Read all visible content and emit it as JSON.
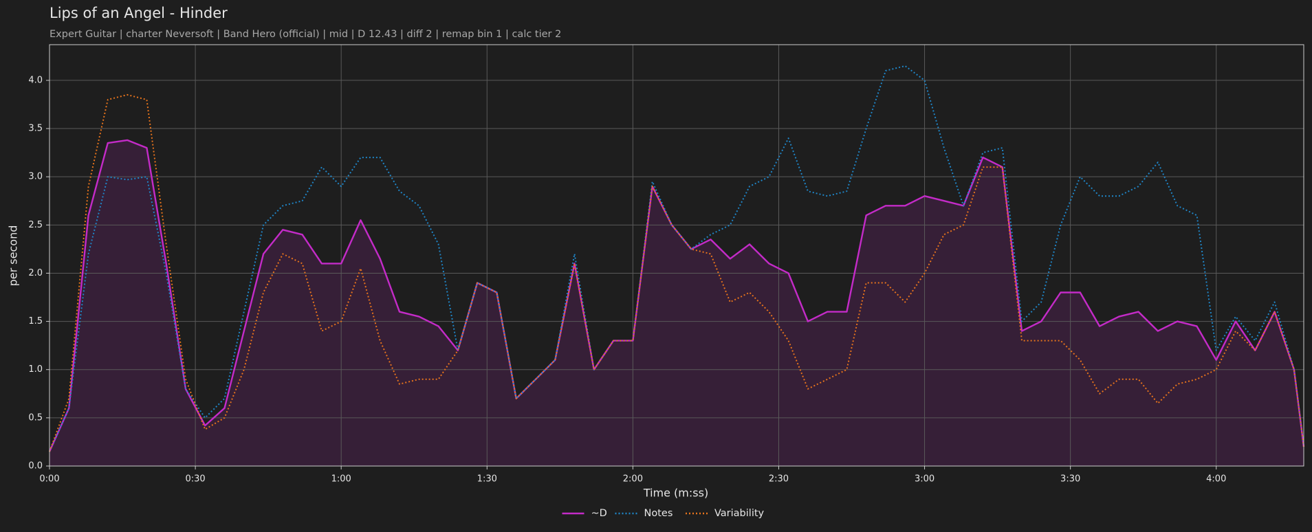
{
  "chart_data": {
    "type": "line",
    "title": "Lips of an Angel - Hinder",
    "subtitle": "Expert Guitar  |  charter Neversoft  |  Band Hero (official)  |  mid  |  D 12.43  |  diff 2  |  remap bin 1  |  calc tier 2",
    "x_label": "Time (m:ss)",
    "y_label": "per second",
    "x": [
      0,
      4,
      8,
      12,
      16,
      20,
      24,
      28,
      32,
      36,
      40,
      44,
      48,
      52,
      56,
      60,
      64,
      68,
      72,
      76,
      80,
      84,
      88,
      92,
      96,
      100,
      104,
      108,
      112,
      116,
      120,
      124,
      128,
      132,
      136,
      140,
      144,
      148,
      152,
      156,
      160,
      164,
      168,
      172,
      176,
      180,
      184,
      188,
      192,
      196,
      200,
      204,
      208,
      212,
      216,
      220,
      224,
      228,
      232,
      236,
      240,
      244,
      248,
      252,
      256,
      258
    ],
    "series": [
      {
        "name": "~D",
        "color": "#c42bc8",
        "linestyle": "solid",
        "fill": true,
        "values": [
          0.15,
          0.6,
          2.6,
          3.35,
          3.38,
          3.3,
          2.1,
          0.8,
          0.42,
          0.6,
          1.4,
          2.2,
          2.45,
          2.4,
          2.1,
          2.1,
          2.55,
          2.15,
          1.6,
          1.55,
          1.45,
          1.2,
          1.9,
          1.8,
          0.7,
          0.9,
          1.1,
          2.1,
          1.0,
          1.3,
          1.3,
          2.9,
          2.5,
          2.25,
          2.35,
          2.15,
          2.3,
          2.1,
          2.0,
          1.5,
          1.6,
          1.6,
          2.6,
          2.7,
          2.7,
          2.8,
          2.75,
          2.7,
          3.2,
          3.1,
          1.4,
          1.5,
          1.8,
          1.8,
          1.45,
          1.55,
          1.6,
          1.4,
          1.5,
          1.45,
          1.1,
          1.5,
          1.2,
          1.6,
          1.0,
          0.2
        ]
      },
      {
        "name": "Notes",
        "color": "#1f86c8",
        "linestyle": "dotted",
        "values": [
          0.15,
          0.6,
          2.2,
          3.0,
          2.97,
          3.0,
          2.0,
          0.8,
          0.5,
          0.7,
          1.6,
          2.5,
          2.7,
          2.75,
          3.1,
          2.9,
          3.2,
          3.2,
          2.85,
          2.7,
          2.3,
          1.2,
          1.9,
          1.8,
          0.7,
          0.9,
          1.1,
          2.2,
          1.0,
          1.3,
          1.3,
          2.95,
          2.5,
          2.25,
          2.4,
          2.5,
          2.9,
          3.0,
          3.4,
          2.85,
          2.8,
          2.85,
          3.5,
          4.1,
          4.15,
          4.0,
          3.3,
          2.7,
          3.25,
          3.3,
          1.5,
          1.7,
          2.5,
          3.0,
          2.8,
          2.8,
          2.9,
          3.15,
          2.7,
          2.6,
          1.2,
          1.55,
          1.3,
          1.7,
          1.0,
          0.2
        ]
      },
      {
        "name": "Variability",
        "color": "#e8741c",
        "linestyle": "dotted",
        "values": [
          0.15,
          0.7,
          2.9,
          3.8,
          3.85,
          3.8,
          2.3,
          0.9,
          0.38,
          0.5,
          1.0,
          1.8,
          2.2,
          2.1,
          1.4,
          1.5,
          2.05,
          1.3,
          0.85,
          0.9,
          0.9,
          1.2,
          1.9,
          1.8,
          0.7,
          0.9,
          1.1,
          2.1,
          1.0,
          1.3,
          1.3,
          2.9,
          2.5,
          2.25,
          2.2,
          1.7,
          1.8,
          1.6,
          1.3,
          0.8,
          0.9,
          1.0,
          1.9,
          1.9,
          1.7,
          2.0,
          2.4,
          2.5,
          3.1,
          3.1,
          1.3,
          1.3,
          1.3,
          1.1,
          0.75,
          0.9,
          0.9,
          0.65,
          0.85,
          0.9,
          1.0,
          1.4,
          1.2,
          1.6,
          1.0,
          0.2
        ]
      }
    ],
    "xlim": [
      0,
      258
    ],
    "xticks": [
      {
        "value": 0,
        "label": "0:00"
      },
      {
        "value": 30,
        "label": "0:30"
      },
      {
        "value": 60,
        "label": "1:00"
      },
      {
        "value": 90,
        "label": "1:30"
      },
      {
        "value": 120,
        "label": "2:00"
      },
      {
        "value": 150,
        "label": "2:30"
      },
      {
        "value": 180,
        "label": "3:00"
      },
      {
        "value": 210,
        "label": "3:30"
      },
      {
        "value": 240,
        "label": "4:00"
      }
    ],
    "ylim": [
      0,
      4.37
    ],
    "yticks": [
      {
        "value": 0,
        "label": "0.0"
      },
      0.5,
      {
        "value": 1,
        "label": "1.0"
      },
      1.5,
      {
        "value": 2,
        "label": "2.0"
      },
      2.5,
      {
        "value": 3,
        "label": "3.0"
      },
      3.5,
      {
        "value": 4,
        "label": "4.0"
      }
    ],
    "grid": true,
    "legend": "bottom"
  }
}
